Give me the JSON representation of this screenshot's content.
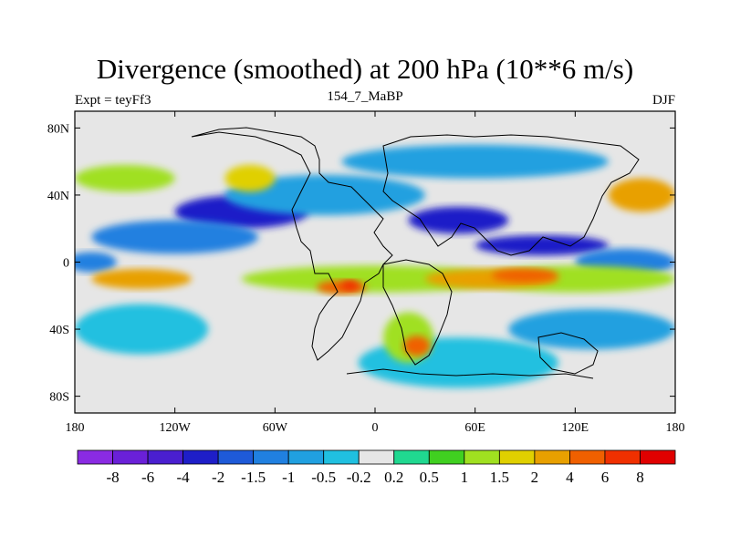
{
  "chart_data": {
    "type": "heatmap",
    "title": "Divergence (smoothed) at 200 hPa (10**6 m/s)",
    "left_label": "Expt = teyFf3",
    "center_label": "154_7_MaBP",
    "right_label": "DJF",
    "x_ticks": [
      "180",
      "120W",
      "60W",
      "0",
      "60E",
      "120E",
      "180"
    ],
    "x_tick_values": [
      -180,
      -120,
      -60,
      0,
      60,
      120,
      180
    ],
    "y_ticks": [
      "80N",
      "40N",
      "0",
      "40S",
      "80S"
    ],
    "y_tick_values": [
      80,
      40,
      0,
      -40,
      -80
    ],
    "xlim": [
      -180,
      180
    ],
    "ylim": [
      -90,
      90
    ],
    "levels": [
      "-8",
      "-6",
      "-4",
      "-2",
      "-1.5",
      "-1",
      "-0.5",
      "-0.2",
      "0.2",
      "0.5",
      "1",
      "1.5",
      "2",
      "4",
      "6",
      "8"
    ],
    "level_colors": [
      "#8a2be2",
      "#6a20d8",
      "#4a1fd0",
      "#1e1ec8",
      "#1e5ad8",
      "#2080e0",
      "#20a0e0",
      "#20c0e0",
      "#e6e6e6",
      "#20d890",
      "#40d020",
      "#a0e020",
      "#e0d000",
      "#e8a000",
      "#f06000",
      "#f03000",
      "#e00000"
    ],
    "regions": [
      {
        "level": "-2",
        "lon": -80,
        "lat": 30,
        "rx": 40,
        "ry": 10
      },
      {
        "level": "-2",
        "lon": 50,
        "lat": 25,
        "rx": 30,
        "ry": 8
      },
      {
        "level": "-2",
        "lon": 100,
        "lat": 10,
        "rx": 40,
        "ry": 6
      },
      {
        "level": "-1",
        "lon": -120,
        "lat": 15,
        "rx": 50,
        "ry": 10
      },
      {
        "level": "-1",
        "lon": 150,
        "lat": 0,
        "rx": 30,
        "ry": 8
      },
      {
        "level": "-1",
        "lon": -170,
        "lat": 0,
        "rx": 15,
        "ry": 6
      },
      {
        "level": "-0.5",
        "lon": -30,
        "lat": 40,
        "rx": 60,
        "ry": 12
      },
      {
        "level": "-0.5",
        "lon": 60,
        "lat": 60,
        "rx": 80,
        "ry": 10
      },
      {
        "level": "-0.5",
        "lon": 130,
        "lat": -40,
        "rx": 50,
        "ry": 12
      },
      {
        "level": "-0.2",
        "lon": -140,
        "lat": -40,
        "rx": 40,
        "ry": 15
      },
      {
        "level": "-0.2",
        "lon": 50,
        "lat": -60,
        "rx": 60,
        "ry": 15
      },
      {
        "level": "1",
        "lon": 0,
        "lat": -10,
        "rx": 80,
        "ry": 8
      },
      {
        "level": "1",
        "lon": 120,
        "lat": -10,
        "rx": 60,
        "ry": 8
      },
      {
        "level": "1",
        "lon": -150,
        "lat": 50,
        "rx": 30,
        "ry": 8
      },
      {
        "level": "1",
        "lon": 20,
        "lat": -45,
        "rx": 15,
        "ry": 15
      },
      {
        "level": "1.5",
        "lon": -75,
        "lat": 50,
        "rx": 15,
        "ry": 8
      },
      {
        "level": "2",
        "lon": 70,
        "lat": -10,
        "rx": 40,
        "ry": 6
      },
      {
        "level": "2",
        "lon": -140,
        "lat": -10,
        "rx": 30,
        "ry": 6
      },
      {
        "level": "2",
        "lon": 160,
        "lat": 40,
        "rx": 20,
        "ry": 10
      },
      {
        "level": "4",
        "lon": -20,
        "lat": -15,
        "rx": 15,
        "ry": 4
      },
      {
        "level": "4",
        "lon": 90,
        "lat": -8,
        "rx": 20,
        "ry": 4
      },
      {
        "level": "4",
        "lon": 25,
        "lat": -50,
        "rx": 8,
        "ry": 6
      },
      {
        "level": "6",
        "lon": -15,
        "lat": -14,
        "rx": 5,
        "ry": 3
      }
    ]
  }
}
